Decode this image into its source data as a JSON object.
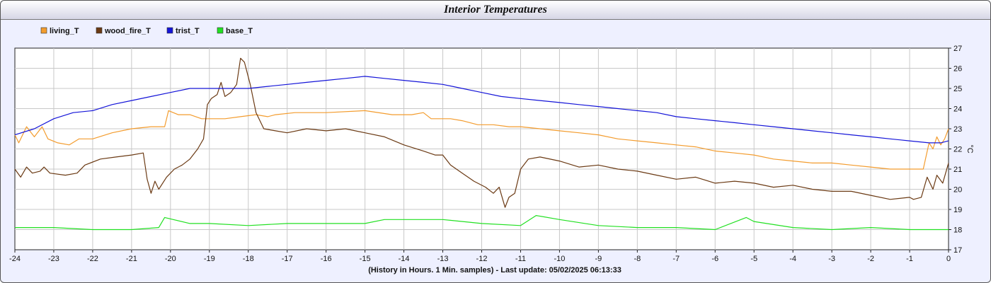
{
  "window": {
    "title": "Interior Temperatures"
  },
  "footer": {
    "text": "(History in Hours. 1 Min. samples) - Last update: 05/02/2025 06:13:33"
  },
  "chart_data": {
    "type": "line",
    "title": "Interior Temperatures",
    "xlabel": "(History in Hours. 1 Min. samples) - Last update: 05/02/2025 06:13:33",
    "ylabel": "°C",
    "xlim": [
      -24,
      0
    ],
    "ylim": [
      17,
      27
    ],
    "x_ticks": [
      -24,
      -23,
      -22,
      -21,
      -20,
      -19,
      -18,
      -17,
      -16,
      -15,
      -14,
      -13,
      -12,
      -11,
      -10,
      -9,
      -8,
      -7,
      -6,
      -5,
      -4,
      -3,
      -2,
      -1,
      0
    ],
    "y_ticks": [
      17,
      18,
      19,
      20,
      21,
      22,
      23,
      24,
      25,
      26,
      27
    ],
    "grid": true,
    "legend_position": "top-left",
    "series": [
      {
        "name": "living_T",
        "color": "#f39c2e",
        "points": [
          [
            -24,
            22.7
          ],
          [
            -23.9,
            22.3
          ],
          [
            -23.7,
            23.1
          ],
          [
            -23.5,
            22.6
          ],
          [
            -23.3,
            23.1
          ],
          [
            -23.15,
            22.5
          ],
          [
            -22.9,
            22.3
          ],
          [
            -22.6,
            22.2
          ],
          [
            -22.35,
            22.5
          ],
          [
            -22,
            22.5
          ],
          [
            -21.5,
            22.8
          ],
          [
            -21,
            23.0
          ],
          [
            -20.5,
            23.1
          ],
          [
            -20.15,
            23.1
          ],
          [
            -20.05,
            23.9
          ],
          [
            -19.8,
            23.7
          ],
          [
            -19.5,
            23.7
          ],
          [
            -19.2,
            23.5
          ],
          [
            -18.6,
            23.5
          ],
          [
            -18.2,
            23.6
          ],
          [
            -17.8,
            23.7
          ],
          [
            -17.5,
            23.6
          ],
          [
            -17.3,
            23.7
          ],
          [
            -16.8,
            23.8
          ],
          [
            -16,
            23.8
          ],
          [
            -15,
            23.9
          ],
          [
            -14.3,
            23.7
          ],
          [
            -13.8,
            23.7
          ],
          [
            -13.5,
            23.8
          ],
          [
            -13.3,
            23.5
          ],
          [
            -12.8,
            23.5
          ],
          [
            -12.5,
            23.4
          ],
          [
            -12.1,
            23.2
          ],
          [
            -11.7,
            23.2
          ],
          [
            -11.3,
            23.1
          ],
          [
            -11.0,
            23.1
          ],
          [
            -10.5,
            23.0
          ],
          [
            -10,
            22.9
          ],
          [
            -9.5,
            22.8
          ],
          [
            -9,
            22.7
          ],
          [
            -8.5,
            22.5
          ],
          [
            -8,
            22.4
          ],
          [
            -7.5,
            22.3
          ],
          [
            -7,
            22.2
          ],
          [
            -6.5,
            22.1
          ],
          [
            -6,
            21.9
          ],
          [
            -5.5,
            21.8
          ],
          [
            -5,
            21.7
          ],
          [
            -4.5,
            21.5
          ],
          [
            -4,
            21.4
          ],
          [
            -3.5,
            21.3
          ],
          [
            -3,
            21.3
          ],
          [
            -2.5,
            21.2
          ],
          [
            -2,
            21.1
          ],
          [
            -1.5,
            21.0
          ],
          [
            -0.65,
            21.0
          ],
          [
            -0.5,
            22.3
          ],
          [
            -0.4,
            22.0
          ],
          [
            -0.3,
            22.6
          ],
          [
            -0.2,
            22.2
          ],
          [
            -0.1,
            22.5
          ],
          [
            0,
            23.0
          ]
        ]
      },
      {
        "name": "wood_fire_T",
        "color": "#6b3a14",
        "points": [
          [
            -24,
            21.0
          ],
          [
            -23.85,
            20.6
          ],
          [
            -23.7,
            21.1
          ],
          [
            -23.55,
            20.8
          ],
          [
            -23.35,
            20.9
          ],
          [
            -23.25,
            21.1
          ],
          [
            -23.1,
            20.8
          ],
          [
            -22.7,
            20.7
          ],
          [
            -22.4,
            20.8
          ],
          [
            -22.2,
            21.2
          ],
          [
            -21.8,
            21.5
          ],
          [
            -21.4,
            21.6
          ],
          [
            -21,
            21.7
          ],
          [
            -20.7,
            21.8
          ],
          [
            -20.6,
            20.5
          ],
          [
            -20.5,
            19.8
          ],
          [
            -20.4,
            20.4
          ],
          [
            -20.3,
            20.0
          ],
          [
            -20.1,
            20.6
          ],
          [
            -19.9,
            21.0
          ],
          [
            -19.7,
            21.2
          ],
          [
            -19.5,
            21.5
          ],
          [
            -19.3,
            22.0
          ],
          [
            -19.15,
            22.5
          ],
          [
            -19.05,
            24.2
          ],
          [
            -18.95,
            24.5
          ],
          [
            -18.8,
            24.7
          ],
          [
            -18.7,
            25.3
          ],
          [
            -18.6,
            24.6
          ],
          [
            -18.45,
            24.8
          ],
          [
            -18.3,
            25.2
          ],
          [
            -18.2,
            26.5
          ],
          [
            -18.1,
            26.3
          ],
          [
            -17.95,
            25.2
          ],
          [
            -17.8,
            23.8
          ],
          [
            -17.6,
            23.0
          ],
          [
            -17.3,
            22.9
          ],
          [
            -17,
            22.8
          ],
          [
            -16.5,
            23.0
          ],
          [
            -16,
            22.9
          ],
          [
            -15.5,
            23.0
          ],
          [
            -15,
            22.8
          ],
          [
            -14.5,
            22.6
          ],
          [
            -14,
            22.2
          ],
          [
            -13.5,
            21.9
          ],
          [
            -13.2,
            21.7
          ],
          [
            -13.0,
            21.7
          ],
          [
            -12.8,
            21.2
          ],
          [
            -12.5,
            20.8
          ],
          [
            -12.2,
            20.4
          ],
          [
            -11.9,
            20.1
          ],
          [
            -11.7,
            19.8
          ],
          [
            -11.55,
            20.1
          ],
          [
            -11.4,
            19.1
          ],
          [
            -11.3,
            19.6
          ],
          [
            -11.15,
            19.8
          ],
          [
            -11.0,
            21.0
          ],
          [
            -10.8,
            21.5
          ],
          [
            -10.5,
            21.6
          ],
          [
            -10,
            21.4
          ],
          [
            -9.5,
            21.1
          ],
          [
            -9,
            21.2
          ],
          [
            -8.5,
            21.0
          ],
          [
            -8,
            20.9
          ],
          [
            -7.5,
            20.7
          ],
          [
            -7,
            20.5
          ],
          [
            -6.5,
            20.6
          ],
          [
            -6,
            20.3
          ],
          [
            -5.5,
            20.4
          ],
          [
            -5,
            20.3
          ],
          [
            -4.5,
            20.1
          ],
          [
            -4,
            20.2
          ],
          [
            -3.5,
            20.0
          ],
          [
            -3,
            19.9
          ],
          [
            -2.5,
            19.9
          ],
          [
            -2,
            19.7
          ],
          [
            -1.5,
            19.5
          ],
          [
            -1.0,
            19.6
          ],
          [
            -0.9,
            19.5
          ],
          [
            -0.7,
            19.6
          ],
          [
            -0.55,
            20.6
          ],
          [
            -0.4,
            20.0
          ],
          [
            -0.3,
            20.7
          ],
          [
            -0.15,
            20.3
          ],
          [
            0,
            21.3
          ]
        ]
      },
      {
        "name": "trist_T",
        "color": "#1414d8",
        "points": [
          [
            -24,
            22.7
          ],
          [
            -23.5,
            23.0
          ],
          [
            -23,
            23.5
          ],
          [
            -22.5,
            23.8
          ],
          [
            -22,
            23.9
          ],
          [
            -21.5,
            24.2
          ],
          [
            -21,
            24.4
          ],
          [
            -20.5,
            24.6
          ],
          [
            -20,
            24.8
          ],
          [
            -19.5,
            25.0
          ],
          [
            -19,
            25.0
          ],
          [
            -18.5,
            25.0
          ],
          [
            -18,
            25.0
          ],
          [
            -17.5,
            25.1
          ],
          [
            -17,
            25.2
          ],
          [
            -16.5,
            25.3
          ],
          [
            -16,
            25.4
          ],
          [
            -15.5,
            25.5
          ],
          [
            -15,
            25.6
          ],
          [
            -14.5,
            25.5
          ],
          [
            -14,
            25.4
          ],
          [
            -13.5,
            25.3
          ],
          [
            -13,
            25.2
          ],
          [
            -12.5,
            25.0
          ],
          [
            -12,
            24.8
          ],
          [
            -11.5,
            24.6
          ],
          [
            -11,
            24.5
          ],
          [
            -10.5,
            24.4
          ],
          [
            -10,
            24.3
          ],
          [
            -9.5,
            24.2
          ],
          [
            -9,
            24.1
          ],
          [
            -8.5,
            24.0
          ],
          [
            -8,
            23.9
          ],
          [
            -7.5,
            23.8
          ],
          [
            -7,
            23.6
          ],
          [
            -6.5,
            23.5
          ],
          [
            -6,
            23.4
          ],
          [
            -5.5,
            23.3
          ],
          [
            -5,
            23.2
          ],
          [
            -4.5,
            23.1
          ],
          [
            -4,
            23.0
          ],
          [
            -3.5,
            22.9
          ],
          [
            -3,
            22.8
          ],
          [
            -2.5,
            22.7
          ],
          [
            -2,
            22.6
          ],
          [
            -1.5,
            22.5
          ],
          [
            -1,
            22.4
          ],
          [
            -0.5,
            22.3
          ],
          [
            -0.2,
            22.3
          ],
          [
            0,
            22.4
          ]
        ]
      },
      {
        "name": "base_T",
        "color": "#22e022",
        "points": [
          [
            -24,
            18.1
          ],
          [
            -23,
            18.1
          ],
          [
            -22,
            18.0
          ],
          [
            -21,
            18.0
          ],
          [
            -20.3,
            18.1
          ],
          [
            -20.15,
            18.6
          ],
          [
            -19.5,
            18.3
          ],
          [
            -19,
            18.3
          ],
          [
            -18,
            18.2
          ],
          [
            -17,
            18.3
          ],
          [
            -16,
            18.3
          ],
          [
            -15,
            18.3
          ],
          [
            -14.5,
            18.5
          ],
          [
            -14,
            18.5
          ],
          [
            -13,
            18.5
          ],
          [
            -12,
            18.3
          ],
          [
            -11,
            18.2
          ],
          [
            -10.6,
            18.7
          ],
          [
            -10,
            18.5
          ],
          [
            -9,
            18.2
          ],
          [
            -8,
            18.1
          ],
          [
            -7,
            18.1
          ],
          [
            -6,
            18.0
          ],
          [
            -5.2,
            18.6
          ],
          [
            -5,
            18.4
          ],
          [
            -4,
            18.1
          ],
          [
            -3,
            18.0
          ],
          [
            -2,
            18.1
          ],
          [
            -1,
            18.0
          ],
          [
            0,
            18.0
          ]
        ]
      }
    ]
  }
}
